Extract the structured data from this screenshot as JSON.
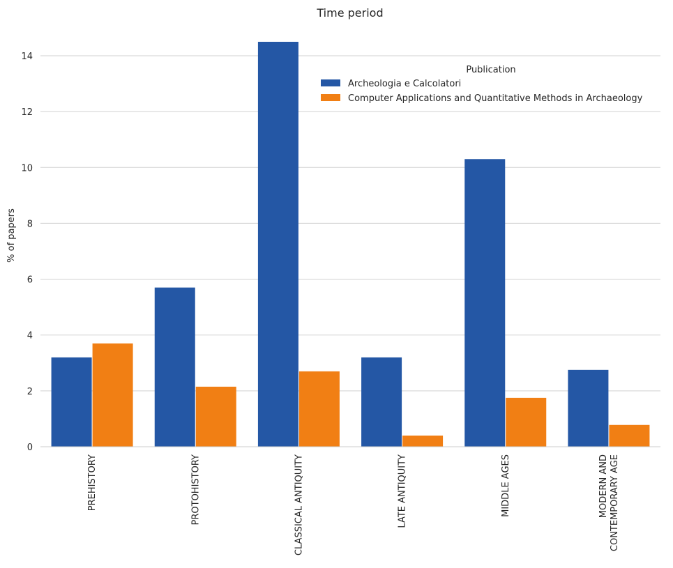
{
  "chart_data": {
    "type": "bar",
    "title": "Time period",
    "xlabel": "",
    "ylabel": "% of papers",
    "ylim": [
      0,
      15
    ],
    "yticks": [
      0,
      2,
      4,
      6,
      8,
      10,
      12,
      14
    ],
    "grid": true,
    "categories": [
      [
        "PREHISTORY"
      ],
      [
        "PROTOHISTORY"
      ],
      [
        "CLASSICAL ANTIQUITY"
      ],
      [
        "LATE ANTIQUITY"
      ],
      [
        "MIDDLE AGES"
      ],
      [
        "MODERN AND",
        "CONTEMPORARY AGE"
      ]
    ],
    "series": [
      {
        "name": "Archeologia e Calcolatori",
        "color": "#2457a5",
        "values": [
          3.2,
          5.7,
          14.5,
          3.2,
          10.3,
          2.75
        ]
      },
      {
        "name": "Computer Applications and Quantitative Methods in Archaeology",
        "color": "#f17f14",
        "values": [
          3.7,
          2.15,
          2.7,
          0.4,
          1.75,
          0.78
        ]
      }
    ],
    "legend": {
      "title": "Publication",
      "position": "top-right"
    }
  }
}
